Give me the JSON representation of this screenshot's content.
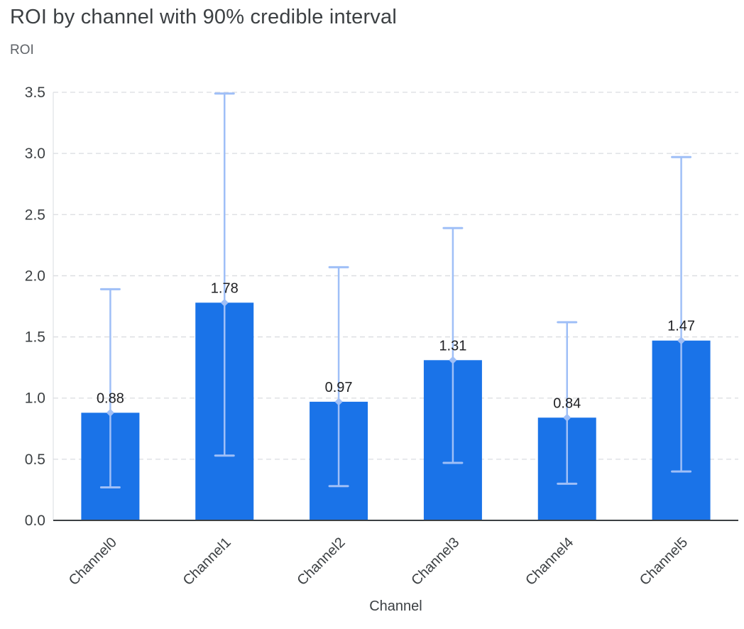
{
  "chart_data": {
    "type": "bar",
    "title": "ROI by channel with 90% credible interval",
    "ylabel": "ROI",
    "xlabel": "Channel",
    "categories": [
      "Channel0",
      "Channel1",
      "Channel2",
      "Channel3",
      "Channel4",
      "Channel5"
    ],
    "values": [
      0.88,
      1.78,
      0.97,
      1.31,
      0.84,
      1.47
    ],
    "value_labels": [
      "0.88",
      "1.78",
      "0.97",
      "1.31",
      "0.84",
      "1.47"
    ],
    "error_low": [
      0.27,
      0.53,
      0.28,
      0.47,
      0.3,
      0.4
    ],
    "error_high": [
      1.89,
      3.49,
      2.07,
      2.39,
      1.62,
      2.97
    ],
    "ylim": [
      0,
      3.5
    ],
    "y_ticks": [
      "0.0",
      "0.5",
      "1.0",
      "1.5",
      "2.0",
      "2.5",
      "3.0",
      "3.5"
    ],
    "grid": "dashed-horizontal",
    "legend": "none",
    "colors": {
      "bar": "#1a73e8",
      "error_bar": "#9fbff7",
      "gridline": "#dadce0",
      "axis_line": "#3c4043",
      "tick_label": "#3c4043",
      "value_label": "#202124"
    }
  }
}
